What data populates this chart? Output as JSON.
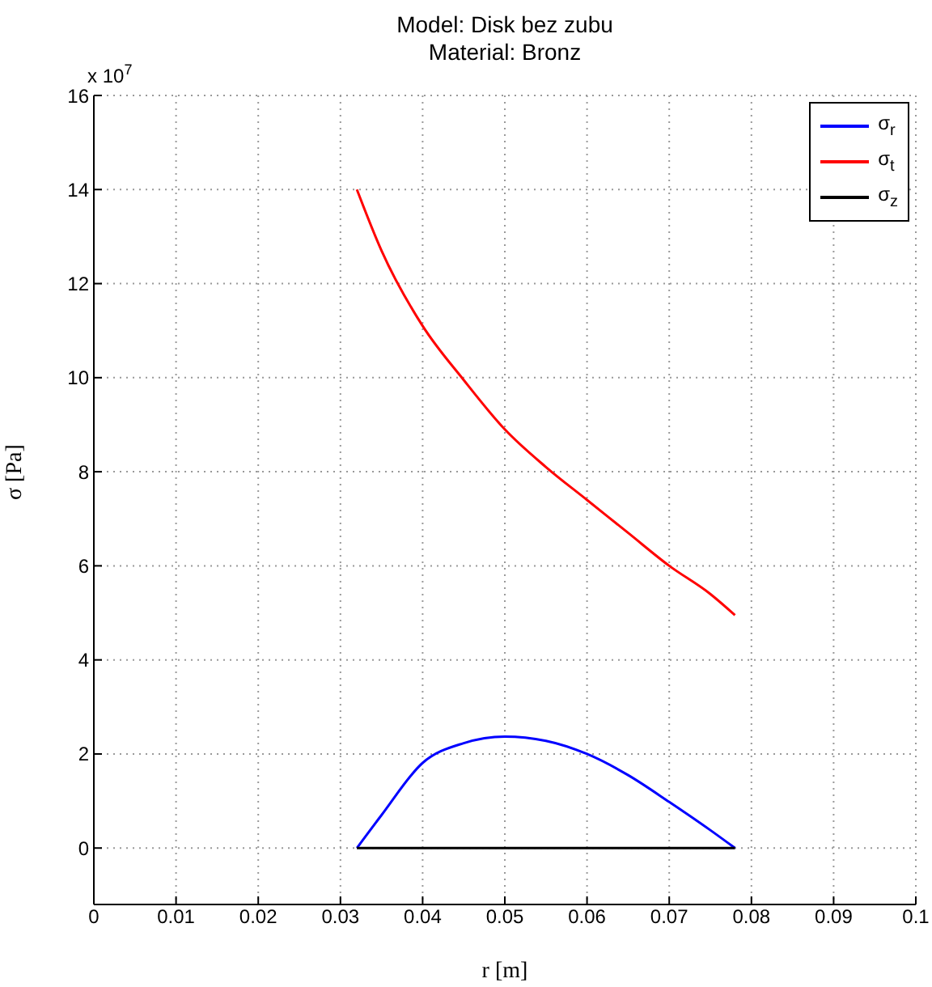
{
  "chart_data": {
    "type": "line",
    "title": "Model: Disk bez zubu",
    "subtitle": "Material: Bronz",
    "xlabel": "r [m]",
    "ylabel": "σ [Pa]",
    "annotations": [
      "x 10$^{7}$"
    ],
    "x": [
      0.032,
      0.035,
      0.04,
      0.045,
      0.05,
      0.055,
      0.06,
      0.065,
      0.07,
      0.075,
      0.078
    ],
    "series": [
      {
        "name": "σ$_{r}$",
        "color": "#0000ff",
        "values": [
          0,
          0.7,
          1.81,
          2.23,
          2.37,
          2.28,
          2.0,
          1.55,
          0.98,
          0.38,
          0
        ]
      },
      {
        "name": "σ$_{t}$",
        "color": "#ff0000",
        "values": [
          14,
          12.7,
          11.1,
          9.95,
          8.9,
          8.1,
          7.4,
          6.7,
          6.0,
          5.4,
          4.95
        ]
      },
      {
        "name": "σ$_{z}$",
        "color": "#000000",
        "values": [
          0,
          0,
          0,
          0,
          0,
          0,
          0,
          0,
          0,
          0,
          0
        ]
      }
    ],
    "xlim": [
      0,
      0.1
    ],
    "xticks": [
      0,
      0.01,
      0.02,
      0.03,
      0.04,
      0.05,
      0.06,
      0.07,
      0.08,
      0.09,
      0.1
    ],
    "ylim": [
      -1.2,
      16
    ],
    "yticks": [
      0,
      2,
      4,
      6,
      8,
      10,
      12,
      14,
      16
    ],
    "grid": true,
    "legend": "top right",
    "marker": "none",
    "line_style": "solid"
  }
}
